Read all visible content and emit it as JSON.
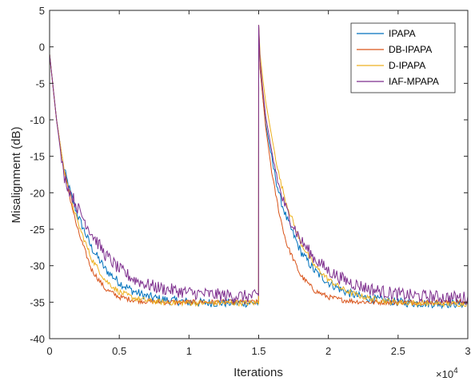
{
  "chart_data": {
    "type": "line",
    "title": "",
    "xlabel": "Iterations",
    "ylabel": "Misalignment (dB)",
    "x_multiplier_label": "×10",
    "x_multiplier_exponent": "4",
    "xlim": [
      0,
      3
    ],
    "ylim": [
      -40,
      5
    ],
    "x_ticks": [
      0,
      0.5,
      1,
      1.5,
      2,
      2.5,
      3
    ],
    "x_tick_labels": [
      "0",
      "0.5",
      "1",
      "1.5",
      "2",
      "2.5",
      "3"
    ],
    "y_ticks": [
      5,
      0,
      -5,
      -10,
      -15,
      -20,
      -25,
      -30,
      -35,
      -40
    ],
    "y_tick_labels": [
      "5",
      "0",
      "-5",
      "-10",
      "-15",
      "-20",
      "-25",
      "-30",
      "-35",
      "-40"
    ],
    "grid": false,
    "legend_position": "top-right",
    "series": [
      {
        "name": "IPAPA",
        "color": "#0072bd",
        "x": [
          0,
          0.05,
          0.1,
          0.15,
          0.2,
          0.3,
          0.4,
          0.5,
          0.6,
          0.7,
          0.8,
          1.0,
          1.2,
          1.4,
          1.499,
          1.5,
          1.51,
          1.53,
          1.55,
          1.6,
          1.65,
          1.7,
          1.8,
          1.9,
          2.0,
          2.1,
          2.2,
          2.3,
          2.4,
          2.5,
          2.6,
          2.8,
          3.0
        ],
        "y": [
          -1,
          -10,
          -16.5,
          -20,
          -23,
          -27.5,
          -30.5,
          -32.3,
          -33.5,
          -34.2,
          -34.6,
          -35,
          -35.1,
          -35.1,
          -35.1,
          3,
          -3,
          -7,
          -10.5,
          -16,
          -20.5,
          -23.5,
          -28,
          -30.7,
          -32.3,
          -33.4,
          -34.1,
          -34.5,
          -34.8,
          -35,
          -35.1,
          -35.2,
          -35.2
        ]
      },
      {
        "name": "DB-IPAPA",
        "color": "#d95319",
        "x": [
          0,
          0.05,
          0.1,
          0.15,
          0.2,
          0.3,
          0.4,
          0.5,
          0.6,
          0.7,
          0.8,
          1.0,
          1.2,
          1.4,
          1.499,
          1.5,
          1.51,
          1.53,
          1.55,
          1.6,
          1.65,
          1.7,
          1.8,
          1.9,
          2.0,
          2.1,
          2.2,
          2.3,
          2.4,
          2.5,
          2.6,
          2.8,
          3.0
        ],
        "y": [
          -1,
          -10,
          -16.5,
          -21,
          -25,
          -30.5,
          -33.2,
          -34.3,
          -34.7,
          -34.9,
          -35,
          -35,
          -35,
          -35,
          -35,
          3,
          -3,
          -7,
          -11,
          -18,
          -23,
          -27,
          -31.3,
          -33.4,
          -34.3,
          -34.7,
          -34.9,
          -35,
          -35,
          -35,
          -35,
          -35,
          -35
        ]
      },
      {
        "name": "D-IPAPA",
        "color": "#edb120",
        "x": [
          0,
          0.05,
          0.1,
          0.15,
          0.2,
          0.3,
          0.4,
          0.5,
          0.6,
          0.7,
          0.8,
          1.0,
          1.2,
          1.4,
          1.499,
          1.5,
          1.51,
          1.53,
          1.55,
          1.6,
          1.65,
          1.7,
          1.8,
          1.9,
          2.0,
          2.1,
          2.2,
          2.3,
          2.4,
          2.5,
          2.6,
          2.8,
          3.0
        ],
        "y": [
          -1,
          -10,
          -16.5,
          -20.5,
          -24,
          -29,
          -32,
          -33.6,
          -34.4,
          -34.8,
          -35,
          -35.1,
          -35.1,
          -35.1,
          -35.1,
          3,
          -1,
          -4.5,
          -7.5,
          -13,
          -18,
          -21.5,
          -26.8,
          -30,
          -31.9,
          -33.2,
          -34,
          -34.5,
          -34.8,
          -35,
          -35.1,
          -35.2,
          -35.2
        ]
      },
      {
        "name": "IAF-MPAPA",
        "color": "#7e2f8e",
        "x": [
          0,
          0.05,
          0.1,
          0.15,
          0.2,
          0.3,
          0.4,
          0.5,
          0.6,
          0.7,
          0.8,
          1.0,
          1.2,
          1.4,
          1.499,
          1.5,
          1.51,
          1.53,
          1.55,
          1.6,
          1.65,
          1.7,
          1.8,
          1.9,
          2.0,
          2.1,
          2.2,
          2.3,
          2.4,
          2.5,
          2.6,
          2.8,
          3.0
        ],
        "y": [
          -1,
          -10,
          -17.5,
          -20,
          -22,
          -25.5,
          -28.5,
          -30.5,
          -31.8,
          -32.6,
          -33.1,
          -33.7,
          -34,
          -34.2,
          -34.2,
          3,
          -2,
          -6,
          -9.5,
          -15,
          -19.5,
          -22.5,
          -26.5,
          -29,
          -30.7,
          -31.8,
          -32.6,
          -33.2,
          -33.6,
          -33.9,
          -34.1,
          -34.3,
          -34.4
        ]
      }
    ]
  }
}
